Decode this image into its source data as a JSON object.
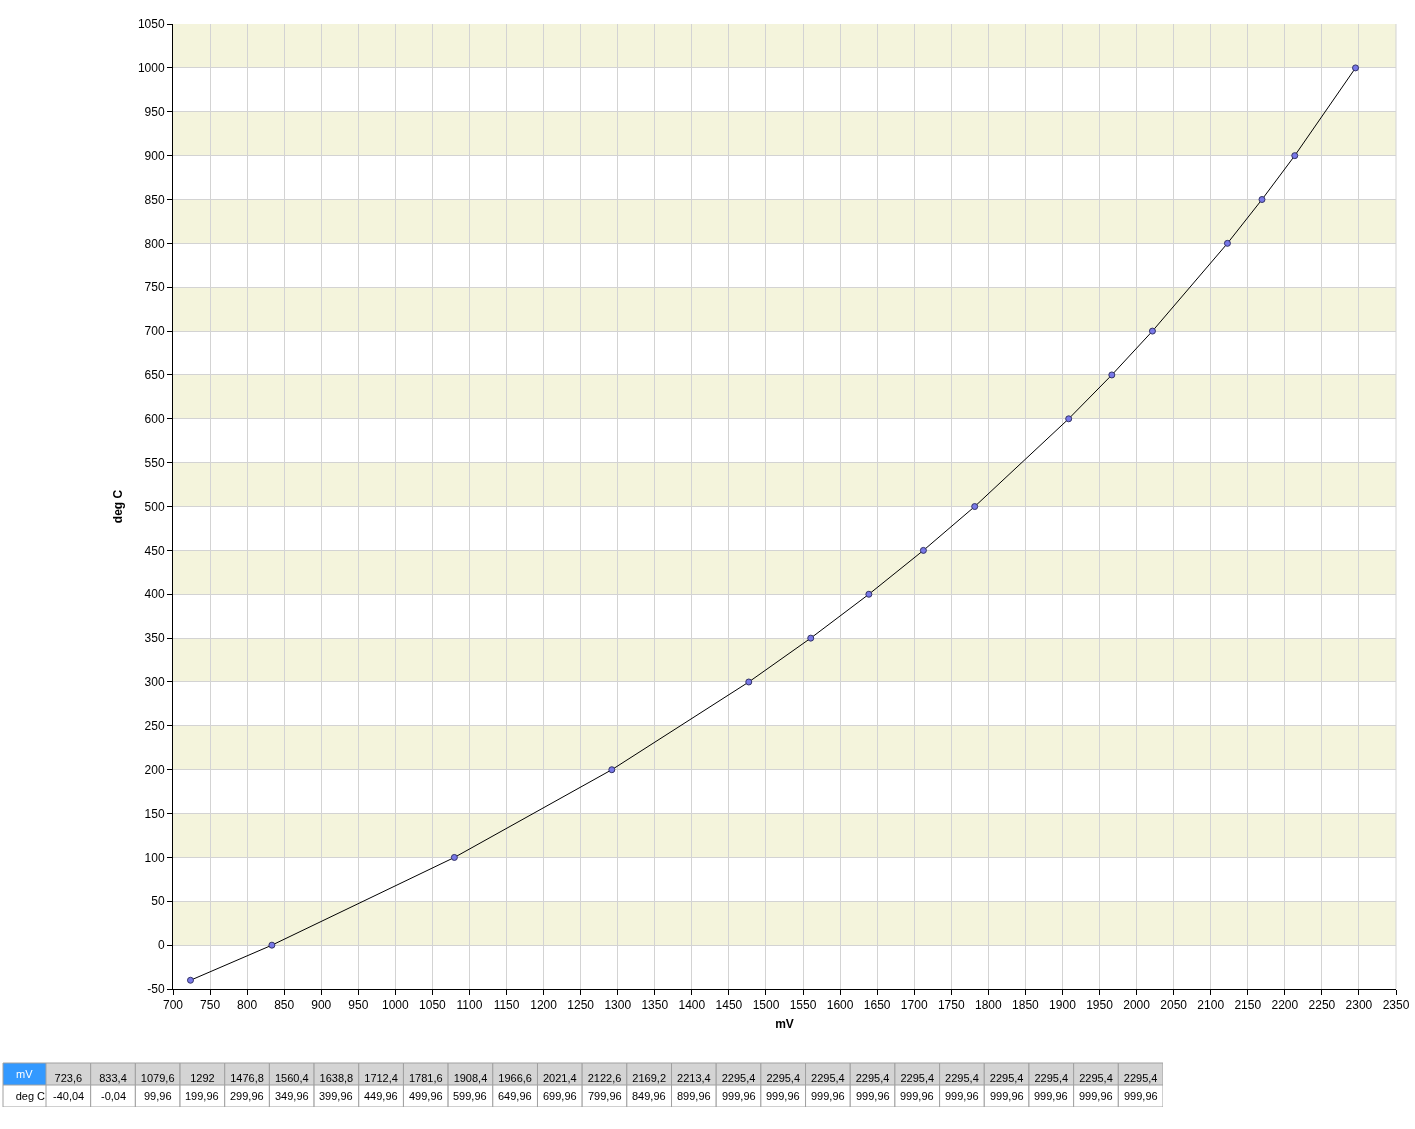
{
  "chart_data": [
    {
      "type": "line",
      "xlabel": "mV",
      "ylabel": "deg C",
      "x": [
        723.6,
        833.4,
        1079.6,
        1292,
        1476.8,
        1560.4,
        1638.8,
        1712.4,
        1781.6,
        1908.4,
        1966.6,
        2021.4,
        2122.6,
        2169.2,
        2213.4,
        2295.4
      ],
      "series": [
        {
          "color": "#7878e8",
          "values": [
            -40.04,
            -0.04,
            99.96,
            199.96,
            299.96,
            349.96,
            399.96,
            449.96,
            499.96,
            599.96,
            649.96,
            699.96,
            799.96,
            849.96,
            899.96,
            999.96
          ]
        }
      ],
      "xlim": [
        700,
        2350
      ],
      "xticks": [
        700,
        750,
        800,
        850,
        900,
        950,
        1000,
        1050,
        1100,
        1150,
        1200,
        1250,
        1300,
        1350,
        1400,
        1450,
        1500,
        1550,
        1600,
        1650,
        1700,
        1750,
        1800,
        1850,
        1900,
        1950,
        2000,
        2050,
        2100,
        2150,
        2200,
        2250,
        2300,
        2350
      ],
      "ylim": [
        -50,
        1050
      ],
      "yticks": [
        -50,
        0,
        50,
        100,
        150,
        200,
        250,
        300,
        350,
        400,
        450,
        500,
        550,
        600,
        650,
        700,
        750,
        800,
        850,
        900,
        950,
        1000,
        1050
      ],
      "grid": true,
      "marker": "circle",
      "line_style": "solid"
    },
    {
      "type": "other",
      "xlabel": "mV",
      "categories": [
        "723,6",
        "833,4",
        "1079,6",
        "1292",
        "1476,8",
        "1560,4",
        "1638,8",
        "1712,4",
        "1781,6",
        "1908,4",
        "1966,6",
        "2021,4",
        "2122,6",
        "2169,2",
        "2213,4",
        "2295,4",
        "2295,4",
        "2295,4",
        "2295,4",
        "2295,4",
        "2295,4",
        "2295,4",
        "2295,4",
        "2295,4",
        "2295,4"
      ],
      "y_categories": [
        "deg C"
      ],
      "cell_labels": [
        [
          "-40,04",
          "-0,04",
          "99,96",
          "199,96",
          "299,96",
          "349,96",
          "399,96",
          "449,96",
          "499,96",
          "599,96",
          "649,96",
          "699,96",
          "799,96",
          "849,96",
          "899,96",
          "999,96",
          "999,96",
          "999,96",
          "999,96",
          "999,96",
          "999,96",
          "999,96",
          "999,96",
          "999,96",
          "999,96"
        ]
      ]
    }
  ]
}
